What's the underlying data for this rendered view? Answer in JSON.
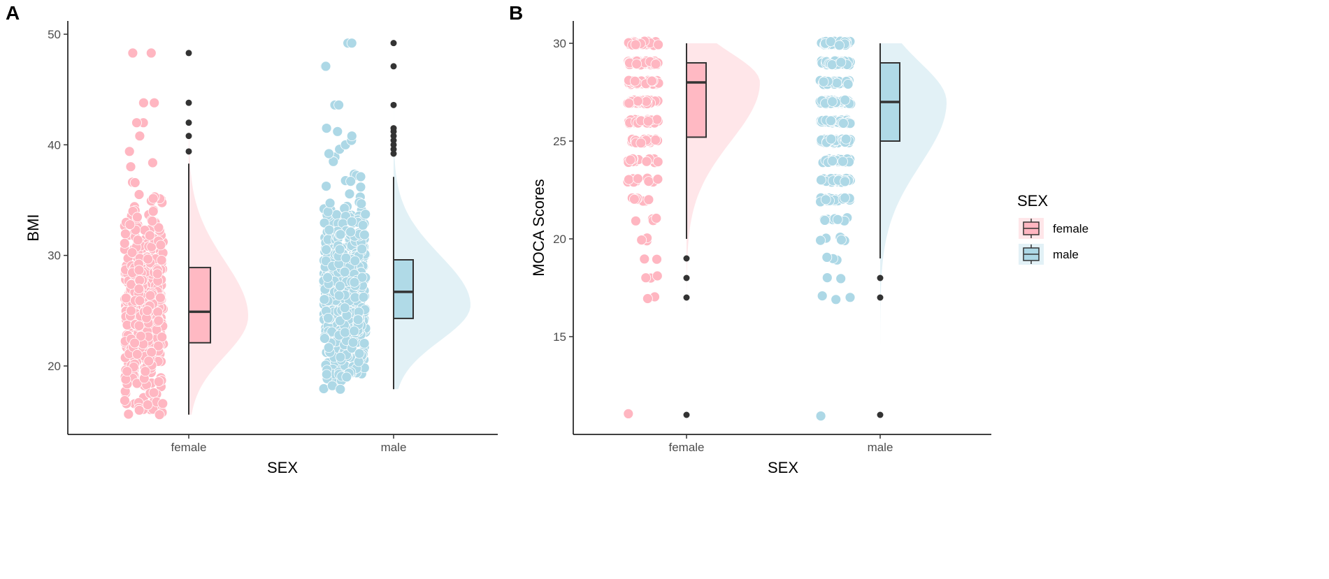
{
  "colors": {
    "female": "#FFB6C1",
    "male": "#ADD8E6",
    "outlier": "#333333",
    "axis": "#000000",
    "box_line": "#333333"
  },
  "legend": {
    "title": "SEX",
    "items": [
      {
        "label": "female",
        "key": "female"
      },
      {
        "label": "male",
        "key": "male"
      }
    ]
  },
  "chart_data": [
    {
      "panel_label": "A",
      "type": "raincloud",
      "title": "",
      "xlabel": "SEX",
      "ylabel": "BMI",
      "categories": [
        "female",
        "male"
      ],
      "ylim": [
        14.5,
        51
      ],
      "yticks": [
        20,
        30,
        40,
        50
      ],
      "grid": false,
      "series": [
        {
          "name": "female",
          "box": {
            "lower_whisker": 15.6,
            "q1": 22.1,
            "median": 24.9,
            "q3": 28.9,
            "upper_whisker": 38.3
          },
          "outliers": [
            39.4,
            40.8,
            42.0,
            43.8,
            48.3
          ],
          "density_mode": 24.5,
          "density_sd_left": 3.6,
          "density_sd_right": 5.0,
          "density_range": [
            15.6,
            48.3
          ],
          "jitter_min": 15.6,
          "jitter_max": 48.3,
          "jitter_center": 25.5,
          "jitter_count": 520,
          "extreme_points": [
            15.6,
            16.0,
            16.6,
            42.0,
            43.8,
            48.3
          ]
        },
        {
          "name": "male",
          "box": {
            "lower_whisker": 17.9,
            "q1": 24.3,
            "median": 26.7,
            "q3": 29.6,
            "upper_whisker": 37.1
          },
          "outliers": [
            39.2,
            39.6,
            40.0,
            40.4,
            40.8,
            41.2,
            41.5,
            43.6,
            47.1,
            49.2
          ],
          "density_mode": 25.5,
          "density_sd_left": 3.2,
          "density_sd_right": 4.5,
          "density_range": [
            17.9,
            49.2
          ],
          "jitter_min": 17.9,
          "jitter_max": 49.2,
          "jitter_center": 27.0,
          "jitter_count": 560,
          "extreme_points": [
            17.9,
            19.0,
            43.6,
            47.1,
            49.2
          ]
        }
      ]
    },
    {
      "panel_label": "B",
      "type": "raincloud",
      "title": "",
      "xlabel": "SEX",
      "ylabel": "MOCA Scores",
      "categories": [
        "female",
        "male"
      ],
      "ylim": [
        10.2,
        30.5
      ],
      "yticks": [
        15,
        20,
        25,
        30
      ],
      "grid": false,
      "series": [
        {
          "name": "female",
          "box": {
            "lower_whisker": 20,
            "q1": 25.2,
            "median": 28,
            "q3": 29,
            "upper_whisker": 30
          },
          "outliers": [
            11,
            17,
            18,
            19
          ],
          "density_mode": 28.0,
          "density_sd_left": 3.0,
          "density_sd_right": 1.5,
          "density_range": [
            11,
            30
          ],
          "score_levels": [
            11,
            17,
            18,
            19,
            20,
            21,
            22,
            23,
            24,
            25,
            26,
            27,
            28,
            29,
            30
          ],
          "score_counts": [
            1,
            2,
            3,
            2,
            3,
            4,
            8,
            14,
            18,
            28,
            36,
            42,
            48,
            46,
            40
          ]
        },
        {
          "name": "male",
          "box": {
            "lower_whisker": 19,
            "q1": 25,
            "median": 27,
            "q3": 29,
            "upper_whisker": 30
          },
          "outliers": [
            11,
            17,
            18
          ],
          "density_mode": 27.0,
          "density_sd_left": 3.2,
          "density_sd_right": 2.0,
          "density_range": [
            11,
            30
          ],
          "score_levels": [
            11,
            17,
            18,
            19,
            20,
            21,
            22,
            23,
            24,
            25,
            26,
            27,
            28,
            29,
            30
          ],
          "score_counts": [
            1,
            3,
            2,
            3,
            6,
            10,
            20,
            28,
            36,
            42,
            44,
            44,
            42,
            38,
            32
          ]
        }
      ]
    }
  ]
}
